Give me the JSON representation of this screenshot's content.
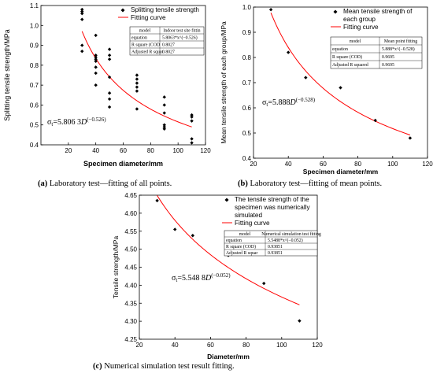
{
  "captions": {
    "a_letter": "(a)",
    "a_text": " Laboratory test—fitting of all points.",
    "b_letter": "(b)",
    "b_text": " Laboratory test—fitting of mean points.",
    "c_letter": "(c)",
    "c_text": " Numerical simulation test result fitting."
  },
  "colors": {
    "points": "#000000",
    "curve": "#ff0000",
    "axes": "#000000"
  },
  "chart_data": [
    {
      "id": "a",
      "type": "scatter",
      "xlabel": "Specimen diameter/mm",
      "ylabel": "Splitting tensile strength/MPa",
      "xlim": [
        0,
        120
      ],
      "ylim": [
        0.4,
        1.1
      ],
      "xticks": [
        20,
        40,
        60,
        80,
        100,
        120
      ],
      "yticks": [
        0.4,
        0.5,
        0.6,
        0.7,
        0.8,
        0.9,
        1.0,
        1.1
      ],
      "legend": [
        "Splitting tensile strength",
        "Fitting curve"
      ],
      "points": [
        [
          30,
          1.08
        ],
        [
          30,
          1.07
        ],
        [
          30,
          1.06
        ],
        [
          30,
          1.03
        ],
        [
          30,
          0.9
        ],
        [
          30,
          0.87
        ],
        [
          40,
          0.95
        ],
        [
          40,
          0.85
        ],
        [
          40,
          0.84
        ],
        [
          40,
          0.83
        ],
        [
          40,
          0.82
        ],
        [
          40,
          0.79
        ],
        [
          40,
          0.76
        ],
        [
          40,
          0.7
        ],
        [
          50,
          0.88
        ],
        [
          50,
          0.85
        ],
        [
          50,
          0.83
        ],
        [
          50,
          0.74
        ],
        [
          50,
          0.66
        ],
        [
          50,
          0.63
        ],
        [
          50,
          0.59
        ],
        [
          70,
          0.75
        ],
        [
          70,
          0.73
        ],
        [
          70,
          0.71
        ],
        [
          70,
          0.69
        ],
        [
          70,
          0.67
        ],
        [
          70,
          0.58
        ],
        [
          90,
          0.64
        ],
        [
          90,
          0.6
        ],
        [
          90,
          0.56
        ],
        [
          90,
          0.5
        ],
        [
          90,
          0.49
        ],
        [
          90,
          0.48
        ],
        [
          110,
          0.55
        ],
        [
          110,
          0.54
        ],
        [
          110,
          0.52
        ],
        [
          110,
          0.43
        ],
        [
          110,
          0.41
        ]
      ],
      "fit": {
        "a": 5.8063,
        "b": -0.526,
        "x_range": [
          30,
          110
        ]
      },
      "table": [
        [
          "model",
          "Indoor test site fittin"
        ],
        [
          "equation",
          "5.8063*x^(−0.526)"
        ],
        [
          "R square (COD",
          "0.8027"
        ],
        [
          "Adjusted R squar",
          "0.8027"
        ]
      ],
      "annotation": {
        "pre": "σ",
        "sub": "t",
        "mid": "=5.806 3",
        "var": "D",
        "sup": "(−0.526)"
      }
    },
    {
      "id": "b",
      "type": "scatter",
      "xlabel": "Specimen diameter/mm",
      "ylabel": "Mean tensile strength of each group/MPa",
      "xlim": [
        20,
        120
      ],
      "ylim": [
        0.4,
        1.0
      ],
      "xticks": [
        20,
        40,
        60,
        80,
        100,
        120
      ],
      "yticks": [
        0.4,
        0.5,
        0.6,
        0.7,
        0.8,
        0.9,
        1.0
      ],
      "legend": [
        "Mean tensile strength of",
        "each group",
        "Fitting curve"
      ],
      "points": [
        [
          30,
          0.99
        ],
        [
          40,
          0.82
        ],
        [
          50,
          0.72
        ],
        [
          70,
          0.68
        ],
        [
          90,
          0.55
        ],
        [
          110,
          0.48
        ]
      ],
      "fit": {
        "a": 5.888,
        "b": -0.528,
        "x_range": [
          30,
          110
        ]
      },
      "table": [
        [
          "model",
          "Mean point fitting"
        ],
        [
          "equation",
          "5.888*x^(−0.528)"
        ],
        [
          "R square (COD)",
          "0.9695"
        ],
        [
          "Adjusted R squared",
          "0.9695"
        ]
      ],
      "annotation": {
        "pre": "σ",
        "sub": "t",
        "mid": "=5.888",
        "var": "D",
        "sup": "(−0.528)"
      }
    },
    {
      "id": "c",
      "type": "scatter",
      "xlabel": "Diameter/mm",
      "ylabel": "Tensile strength/MPa",
      "xlim": [
        20,
        120
      ],
      "ylim": [
        4.25,
        4.65
      ],
      "xticks": [
        20,
        40,
        60,
        80,
        100,
        120
      ],
      "yticks": [
        4.25,
        4.3,
        4.35,
        4.4,
        4.45,
        4.5,
        4.55,
        4.6,
        4.65
      ],
      "legend": [
        "The tensile strength of the",
        "specimen was numerically",
        "simulated",
        "Fitting curve"
      ],
      "points": [
        [
          30,
          4.635
        ],
        [
          40,
          4.555
        ],
        [
          50,
          4.538
        ],
        [
          70,
          4.483
        ],
        [
          90,
          4.405
        ],
        [
          110,
          4.301
        ]
      ],
      "fit": {
        "a": 5.5488,
        "b": -0.052,
        "x_range": [
          30,
          110
        ]
      },
      "table": [
        [
          "model",
          "Numerical simulation test fitting"
        ],
        [
          "equation",
          "5.5488*x^(−0.052)"
        ],
        [
          "R square (COD)",
          "0.93851"
        ],
        [
          "Adjusted R squar",
          "0.93851"
        ]
      ],
      "annotation": {
        "pre": "σ",
        "sub": "t",
        "mid": "=5.548 8",
        "var": "D",
        "sup": "(−0.052)"
      }
    }
  ]
}
